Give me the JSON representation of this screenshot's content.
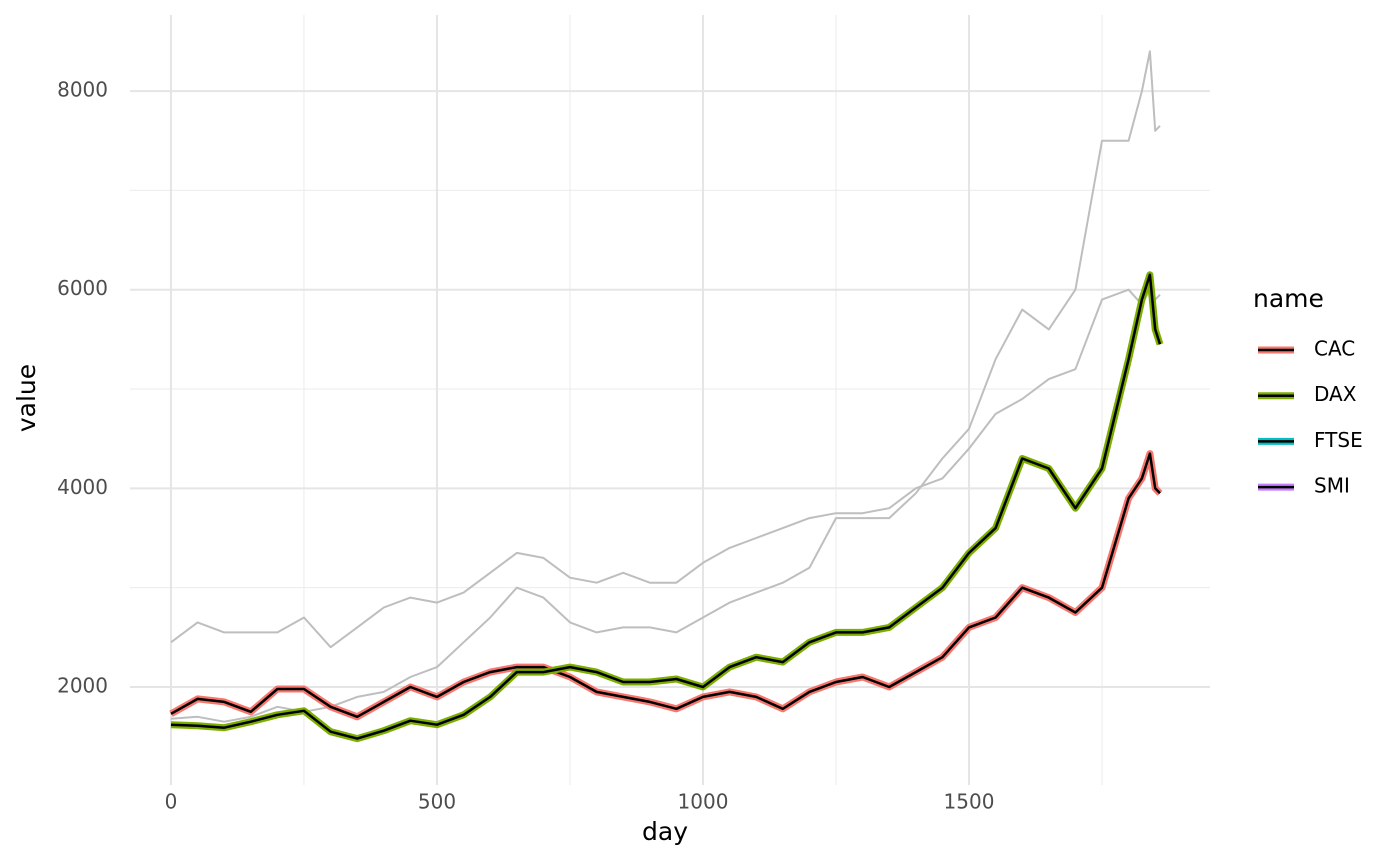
{
  "chart_data": {
    "type": "line",
    "x_label": "day",
    "y_label": "value",
    "legend_title": "name",
    "x": [
      0,
      50,
      100,
      150,
      200,
      250,
      300,
      350,
      400,
      450,
      500,
      550,
      600,
      650,
      700,
      750,
      800,
      850,
      900,
      950,
      1000,
      1050,
      1100,
      1150,
      1200,
      1250,
      1300,
      1350,
      1400,
      1450,
      1500,
      1550,
      1600,
      1650,
      1700,
      1750,
      1800,
      1825,
      1840,
      1850,
      1859
    ],
    "series": [
      {
        "name": "CAC",
        "color": "#f8766d",
        "highlighted": true,
        "values": [
          1730,
          1880,
          1850,
          1750,
          1980,
          1980,
          1800,
          1700,
          1850,
          2000,
          1900,
          2050,
          2150,
          2200,
          2200,
          2100,
          1950,
          1900,
          1850,
          1780,
          1900,
          1950,
          1900,
          1780,
          1950,
          2050,
          2100,
          2000,
          2150,
          2300,
          2600,
          2700,
          3000,
          2900,
          2750,
          3000,
          3900,
          4100,
          4350,
          4000,
          3950
        ]
      },
      {
        "name": "DAX",
        "color": "#7cae00",
        "highlighted": true,
        "values": [
          1620,
          1610,
          1590,
          1650,
          1720,
          1760,
          1550,
          1480,
          1560,
          1660,
          1620,
          1720,
          1900,
          2150,
          2150,
          2200,
          2150,
          2050,
          2050,
          2080,
          2000,
          2200,
          2300,
          2250,
          2450,
          2550,
          2550,
          2600,
          2800,
          3000,
          3350,
          3600,
          4300,
          4200,
          3800,
          4200,
          5300,
          5900,
          6150,
          5600,
          5450
        ]
      },
      {
        "name": "FTSE",
        "color": "#00bfc4",
        "highlighted": false,
        "values": [
          2450,
          2650,
          2550,
          2550,
          2550,
          2700,
          2400,
          2600,
          2800,
          2900,
          2850,
          2950,
          3150,
          3350,
          3300,
          3100,
          3050,
          3150,
          3050,
          3050,
          3250,
          3400,
          3500,
          3600,
          3700,
          3750,
          3750,
          3800,
          4000,
          4100,
          4400,
          4750,
          4900,
          5100,
          5200,
          5900,
          6000,
          5850,
          6000,
          5900,
          5950
        ]
      },
      {
        "name": "SMI",
        "color": "#c77cff",
        "highlighted": false,
        "values": [
          1680,
          1700,
          1650,
          1700,
          1800,
          1750,
          1800,
          1900,
          1950,
          2100,
          2200,
          2450,
          2700,
          3000,
          2900,
          2650,
          2550,
          2600,
          2600,
          2550,
          2700,
          2850,
          2950,
          3050,
          3200,
          3700,
          3700,
          3700,
          3950,
          4300,
          4600,
          5300,
          5800,
          5600,
          6000,
          7500,
          7500,
          8000,
          8400,
          7600,
          7650
        ]
      }
    ],
    "background_color": "#bebebe",
    "xlim": [
      -77,
      1953
    ],
    "xticks": [
      0,
      500,
      1000,
      1500
    ],
    "x_minor_ticks": [
      250,
      750,
      1250,
      1750
    ],
    "ylim": [
      1013,
      8766
    ],
    "yticks": [
      2000,
      4000,
      6000,
      8000
    ],
    "y_minor_ticks": [
      3000,
      5000,
      7000
    ],
    "grid": true,
    "legend_position": "right"
  }
}
